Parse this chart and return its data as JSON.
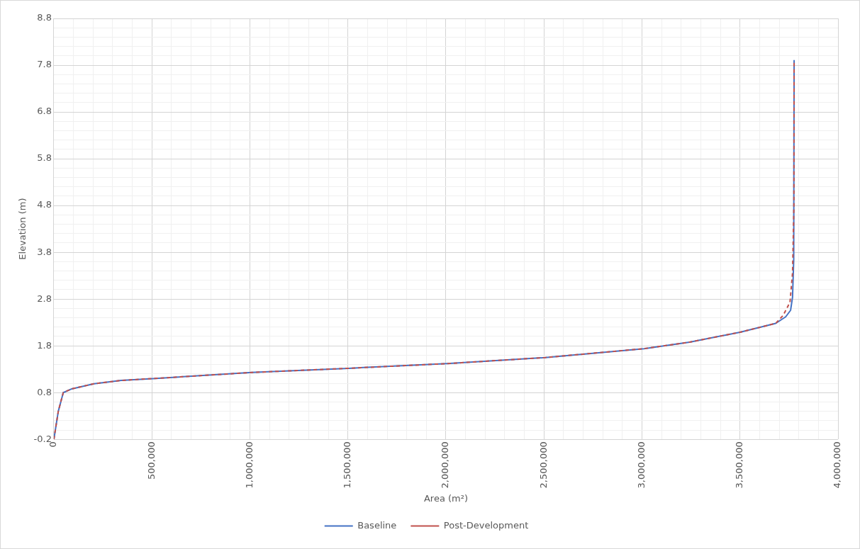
{
  "chart_data": {
    "type": "line",
    "xlabel": "Area (m²)",
    "ylabel": "Elevation (m)",
    "legend": "bottom",
    "grid": true,
    "xlim": [
      0,
      4000000
    ],
    "ylim": [
      -0.2,
      8.8
    ],
    "xticks": [
      {
        "value": 0,
        "label": "0"
      },
      {
        "value": 100000,
        "label": null
      },
      {
        "value": 200000,
        "label": null
      },
      {
        "value": 300000,
        "label": null
      },
      {
        "value": 400000,
        "label": null
      },
      {
        "value": 500000,
        "label": "500,000"
      },
      {
        "value": 600000,
        "label": null
      },
      {
        "value": 700000,
        "label": null
      },
      {
        "value": 800000,
        "label": null
      },
      {
        "value": 900000,
        "label": null
      },
      {
        "value": 1000000,
        "label": "1,000,000"
      },
      {
        "value": 1100000,
        "label": null
      },
      {
        "value": 1200000,
        "label": null
      },
      {
        "value": 1300000,
        "label": null
      },
      {
        "value": 1400000,
        "label": null
      },
      {
        "value": 1500000,
        "label": "1,500,000"
      },
      {
        "value": 1600000,
        "label": null
      },
      {
        "value": 1700000,
        "label": null
      },
      {
        "value": 1800000,
        "label": null
      },
      {
        "value": 1900000,
        "label": null
      },
      {
        "value": 2000000,
        "label": "2,000,000"
      },
      {
        "value": 2100000,
        "label": null
      },
      {
        "value": 2200000,
        "label": null
      },
      {
        "value": 2300000,
        "label": null
      },
      {
        "value": 2400000,
        "label": null
      },
      {
        "value": 2500000,
        "label": "2,500,000"
      },
      {
        "value": 2600000,
        "label": null
      },
      {
        "value": 2700000,
        "label": null
      },
      {
        "value": 2800000,
        "label": null
      },
      {
        "value": 2900000,
        "label": null
      },
      {
        "value": 3000000,
        "label": "3,000,000"
      },
      {
        "value": 3100000,
        "label": null
      },
      {
        "value": 3200000,
        "label": null
      },
      {
        "value": 3300000,
        "label": null
      },
      {
        "value": 3400000,
        "label": null
      },
      {
        "value": 3500000,
        "label": "3,500,000"
      },
      {
        "value": 3600000,
        "label": null
      },
      {
        "value": 3700000,
        "label": null
      },
      {
        "value": 3800000,
        "label": null
      },
      {
        "value": 3900000,
        "label": null
      },
      {
        "value": 4000000,
        "label": "4,000,000"
      }
    ],
    "yticks": [
      -0.2,
      {
        "value": 0,
        "label": null
      },
      {
        "value": 0.2,
        "label": null
      },
      {
        "value": 0.4,
        "label": null
      },
      {
        "value": 0.6,
        "label": null
      },
      0.8,
      {
        "value": 1,
        "label": null
      },
      {
        "value": 1.2,
        "label": null
      },
      {
        "value": 1.4,
        "label": null
      },
      {
        "value": 1.6,
        "label": null
      },
      1.8,
      {
        "value": 2,
        "label": null
      },
      {
        "value": 2.2,
        "label": null
      },
      {
        "value": 2.4,
        "label": null
      },
      {
        "value": 2.6,
        "label": null
      },
      2.8,
      {
        "value": 3,
        "label": null
      },
      {
        "value": 3.2,
        "label": null
      },
      {
        "value": 3.4,
        "label": null
      },
      {
        "value": 3.6,
        "label": null
      },
      3.8,
      {
        "value": 4,
        "label": null
      },
      {
        "value": 4.2,
        "label": null
      },
      {
        "value": 4.4,
        "label": null
      },
      {
        "value": 4.6,
        "label": null
      },
      4.8,
      {
        "value": 5,
        "label": null
      },
      {
        "value": 5.2,
        "label": null
      },
      {
        "value": 5.4,
        "label": null
      },
      {
        "value": 5.6,
        "label": null
      },
      5.8,
      {
        "value": 6,
        "label": null
      },
      {
        "value": 6.2,
        "label": null
      },
      {
        "value": 6.4,
        "label": null
      },
      {
        "value": 6.6,
        "label": null
      },
      6.8,
      {
        "value": 7,
        "label": null
      },
      {
        "value": 7.2,
        "label": null
      },
      {
        "value": 7.4,
        "label": null
      },
      {
        "value": 7.6,
        "label": null
      },
      7.8,
      {
        "value": 8,
        "label": null
      },
      {
        "value": 8.2,
        "label": null
      },
      {
        "value": 8.4,
        "label": null
      },
      {
        "value": 8.6,
        "label": null
      },
      8.8
    ],
    "series": [
      {
        "name": "Baseline",
        "color": "#4472c4",
        "line_style": "solid",
        "x": [
          0,
          22600,
          48000,
          91500,
          204500,
          343000,
          506000,
          1008000,
          1505000,
          2006000,
          2507000,
          3011000,
          3130000,
          3243000,
          3500000,
          3682000,
          3733000,
          3758000,
          3768000,
          3774000,
          3776000
        ],
        "values": [
          -0.2,
          0.4,
          0.8,
          0.88,
          0.99,
          1.06,
          1.1,
          1.23,
          1.32,
          1.42,
          1.55,
          1.74,
          1.81,
          1.88,
          2.09,
          2.28,
          2.42,
          2.56,
          2.84,
          3.64,
          7.91
        ]
      },
      {
        "name": "Post-Development",
        "color": "#c0504d",
        "line_style": "dashed",
        "x": [
          0,
          22600,
          48000,
          91500,
          204500,
          343000,
          506000,
          1008000,
          1505000,
          2006000,
          2507000,
          3011000,
          3130000,
          3243000,
          3500000,
          3682000,
          3720000,
          3755000,
          3768000,
          3775000,
          3776000
        ],
        "values": [
          -0.2,
          0.4,
          0.8,
          0.88,
          0.99,
          1.06,
          1.1,
          1.23,
          1.32,
          1.42,
          1.55,
          1.74,
          1.81,
          1.88,
          2.09,
          2.28,
          2.45,
          2.73,
          3.36,
          4.78,
          7.91
        ]
      }
    ]
  }
}
